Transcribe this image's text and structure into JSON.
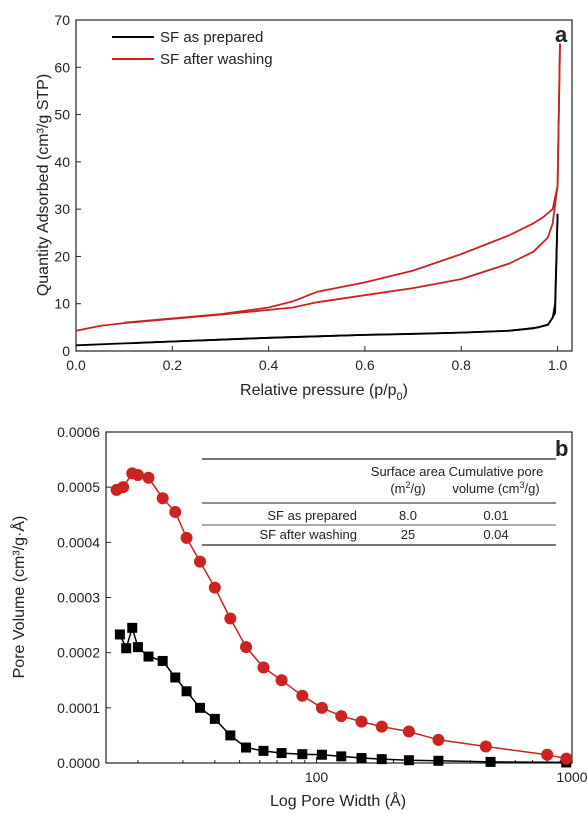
{
  "chart_data": [
    {
      "panel": "a",
      "type": "line",
      "xlabel": "Relative pressure (p/p0)",
      "xlabel_main": "Relative pressure (p/p",
      "xlabel_sub": "0",
      "xlabel_close": ")",
      "ylabel": "Quantity Adsorbed (cm³/g STP)",
      "xlim": [
        0.0,
        1.03
      ],
      "ylim": [
        0,
        70
      ],
      "x_ticks": [
        "0.0",
        "0.2",
        "0.4",
        "0.6",
        "0.8",
        "1.0"
      ],
      "y_ticks": [
        "0",
        "10",
        "20",
        "30",
        "40",
        "50",
        "60",
        "70"
      ],
      "legend_position": "top-left",
      "series": [
        {
          "name": "SF as prepared",
          "color": "#000000",
          "adsorption": {
            "x": [
              0.0,
              0.1,
              0.2,
              0.3,
              0.4,
              0.5,
              0.6,
              0.7,
              0.8,
              0.9,
              0.95,
              0.98,
              0.995,
              1.0
            ],
            "y": [
              1.2,
              1.6,
              2.0,
              2.4,
              2.8,
              3.1,
              3.4,
              3.6,
              3.9,
              4.3,
              4.8,
              5.5,
              8.0,
              29.0
            ]
          },
          "desorption": {
            "x": [
              1.0,
              0.995,
              0.99,
              0.98,
              0.96,
              0.93,
              0.9,
              0.8,
              0.6,
              0.4,
              0.2,
              0.12
            ],
            "y": [
              29.0,
              10.0,
              7.0,
              5.6,
              5.0,
              4.6,
              4.3,
              3.9,
              3.4,
              2.8,
              2.0,
              1.7
            ]
          }
        },
        {
          "name": "SF after washing",
          "color": "#cc2222",
          "adsorption": {
            "x": [
              0.0,
              0.05,
              0.1,
              0.2,
              0.3,
              0.4,
              0.45,
              0.5,
              0.6,
              0.7,
              0.8,
              0.9,
              0.95,
              0.98,
              0.99,
              1.0,
              1.005
            ],
            "y": [
              4.3,
              5.3,
              5.9,
              6.8,
              7.7,
              8.7,
              9.2,
              10.3,
              11.8,
              13.3,
              15.2,
              18.5,
              21.0,
              24.0,
              27.0,
              35.0,
              65.0
            ]
          },
          "desorption": {
            "x": [
              1.005,
              1.0,
              0.99,
              0.97,
              0.95,
              0.9,
              0.8,
              0.7,
              0.6,
              0.5,
              0.45,
              0.4,
              0.3,
              0.2,
              0.1
            ],
            "y": [
              65.0,
              35.0,
              30.0,
              28.3,
              27.0,
              24.5,
              20.5,
              17.0,
              14.5,
              12.5,
              10.5,
              9.2,
              7.8,
              6.9,
              6.0
            ]
          }
        }
      ]
    },
    {
      "panel": "b",
      "type": "line",
      "xlabel": "Log Pore Width (Å)",
      "ylabel": "Pore Volume (cm³/g·Å)",
      "xscale": "log",
      "xlim": [
        15,
        1000
      ],
      "ylim": [
        0,
        0.0006
      ],
      "x_ticks": [
        "100",
        "1000"
      ],
      "y_ticks": [
        "0.0000",
        "0.0001",
        "0.0002",
        "0.0003",
        "0.0004",
        "0.0005",
        "0.0006"
      ],
      "series": [
        {
          "name": "SF as prepared",
          "color": "#000000",
          "marker": "square",
          "x": [
            17,
            18,
            19,
            20,
            22,
            25,
            28,
            31,
            35,
            40,
            46,
            53,
            62,
            73,
            88,
            105,
            125,
            150,
            180,
            230,
            300,
            480,
            950
          ],
          "y": [
            0.000233,
            0.000208,
            0.000245,
            0.00021,
            0.000193,
            0.000185,
            0.000155,
            0.00013,
            0.0001,
            8e-05,
            5e-05,
            2.8e-05,
            2.2e-05,
            1.8e-05,
            1.6e-05,
            1.5e-05,
            1.2e-05,
            9e-06,
            7e-06,
            5e-06,
            4e-06,
            2e-06,
            1e-06
          ]
        },
        {
          "name": "SF after washing",
          "color": "#cc2222",
          "marker": "circle",
          "x": [
            16.5,
            17.5,
            19,
            20,
            22,
            25,
            28,
            31,
            35,
            40,
            46,
            53,
            62,
            73,
            88,
            105,
            125,
            150,
            180,
            230,
            300,
            460,
            800,
            950
          ],
          "y": [
            0.000495,
            0.0005,
            0.000525,
            0.000522,
            0.000517,
            0.00048,
            0.000455,
            0.000408,
            0.000365,
            0.000318,
            0.000262,
            0.00021,
            0.000173,
            0.00015,
            0.000122,
            0.0001,
            8.5e-05,
            7.5e-05,
            6.6e-05,
            5.7e-05,
            4.2e-05,
            3e-05,
            1.5e-05,
            8e-06
          ]
        }
      ],
      "table": {
        "col_surface_line1": "Surface area",
        "col_surface_line2_main": "(m",
        "col_surface_line2_sup": "2",
        "col_surface_line2_end": "/g)",
        "col_pore_line1": "Cumulative pore",
        "col_pore_line2_main": "volume (cm",
        "col_pore_line2_sup": "3",
        "col_pore_line2_end": "/g)",
        "rows": [
          {
            "label": "SF as prepared",
            "surface_area": "8.0",
            "pore_volume": "0.01"
          },
          {
            "label": "SF after washing",
            "surface_area": "25",
            "pore_volume": "0.04"
          }
        ]
      }
    }
  ],
  "colors": {
    "black_series": "#000000",
    "red_series": "#cc2222",
    "axis": "#222222"
  }
}
